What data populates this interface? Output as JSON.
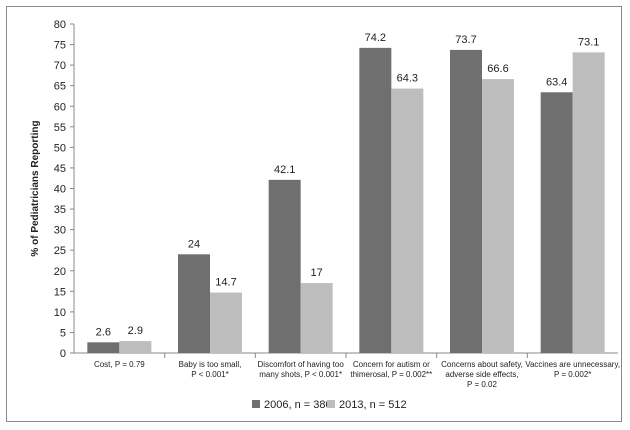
{
  "chart_data": {
    "type": "bar",
    "ylabel": "% of Pediatricians Reporting",
    "xlabel": "",
    "ylim": [
      0,
      80
    ],
    "yticks": [
      0,
      5,
      10,
      15,
      20,
      25,
      30,
      35,
      40,
      45,
      50,
      55,
      60,
      65,
      70,
      75,
      80
    ],
    "grid": false,
    "legend_position": "bottom",
    "categories": [
      [
        "Cost, P = 0.79"
      ],
      [
        "Baby is too small,",
        "P < 0.001*"
      ],
      [
        "Discomfort of having too",
        "many shots, P < 0.001*"
      ],
      [
        "Concern for autism or",
        "thimerosal, P = 0.002**"
      ],
      [
        "Concerns about safety,",
        "adverse side effects,",
        "P = 0.02"
      ],
      [
        "Vaccines are unnecessary,",
        "P = 0.002*"
      ]
    ],
    "series": [
      {
        "name": "2006, n = 380",
        "color": "#6f6f6f",
        "values": [
          2.6,
          24,
          42.1,
          74.2,
          73.7,
          63.4
        ],
        "labels": [
          "2.6",
          "24",
          "42.1",
          "74.2",
          "73.7",
          "63.4"
        ]
      },
      {
        "name": "2013, n = 512",
        "color": "#bdbdbd",
        "values": [
          2.9,
          14.7,
          17,
          64.3,
          66.6,
          73.1
        ],
        "labels": [
          "2.9",
          "14.7",
          "17",
          "64.3",
          "66.6",
          "73.1"
        ]
      }
    ]
  }
}
